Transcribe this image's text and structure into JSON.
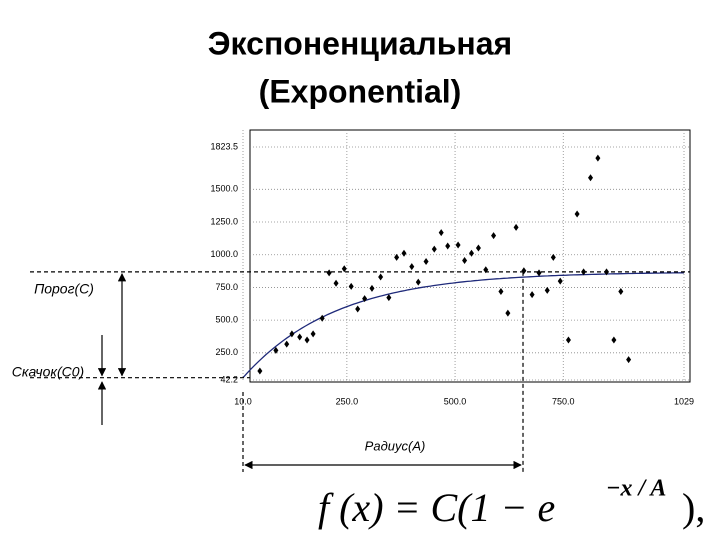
{
  "chart_data": {
    "type": "scatter",
    "title": [
      "Экспоненциальная",
      "(Exponential)"
    ],
    "x_label": "Радиус(A)",
    "annotations": {
      "sill": "Порог(C)",
      "nugget": "Скачок(C0)"
    },
    "formula": [
      "f (x) = C(1 − e",
      "−x / A",
      "),"
    ],
    "xlim": [
      10,
      1029
    ],
    "ylim": [
      42.2,
      1823.5
    ],
    "xticks": [
      {
        "value": 10,
        "label": "10.0"
      },
      {
        "value": 250,
        "label": "250.0"
      },
      {
        "value": 500,
        "label": "500.0"
      },
      {
        "value": 750,
        "label": "750.0"
      },
      1029
    ],
    "yticks": [
      {
        "value": 42.2,
        "label": "42.2"
      },
      {
        "value": 250,
        "label": "250.0"
      },
      {
        "value": 500,
        "label": "500.0"
      },
      {
        "value": 750,
        "label": "750.0"
      },
      {
        "value": 1000,
        "label": "1000.0"
      },
      {
        "value": 1250,
        "label": "1250.0"
      },
      {
        "value": 1500,
        "label": "1500.0"
      },
      {
        "value": 1823.5,
        "label": "1823.5"
      }
    ],
    "grid": true,
    "series": [
      {
        "color": "#000000",
        "x": [
          49,
          86,
          111,
          123,
          141,
          158,
          172,
          193,
          209,
          225,
          244,
          260,
          275,
          291,
          308,
          328,
          347,
          365,
          382,
          400,
          415,
          433,
          452,
          468,
          483,
          507,
          522,
          538,
          554,
          571,
          589,
          606,
          622,
          641,
          659,
          678,
          694,
          713,
          727,
          743,
          762,
          782,
          797,
          813,
          830,
          850,
          867,
          883,
          901
        ],
        "values": [
          111,
          269,
          316,
          395,
          371,
          348,
          395,
          514,
          861,
          782,
          893,
          758,
          585,
          664,
          743,
          830,
          672,
          980,
          1011,
          909,
          790,
          948,
          1043,
          1169,
          1067,
          1074,
          956,
          1011,
          1051,
          885,
          1146,
          719,
          553,
          1209,
          877,
          695,
          861,
          727,
          980,
          798,
          348,
          1311,
          869,
          1588,
          1738,
          869,
          348,
          719,
          198
        ]
      }
    ],
    "model": {
      "color": "#1f2a7a",
      "nugget": 60,
      "sill": 869,
      "range": 647
    }
  }
}
